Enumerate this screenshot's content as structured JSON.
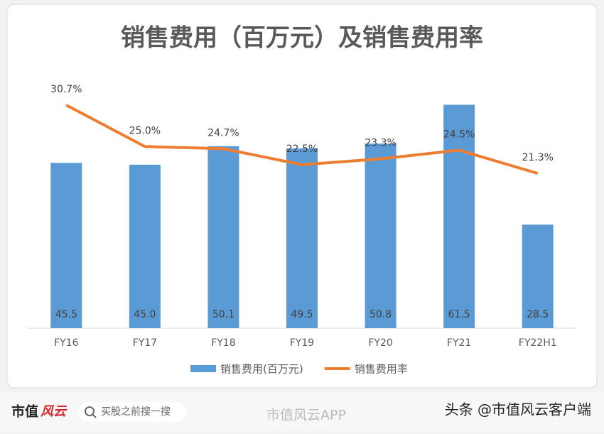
{
  "chart_data": {
    "type": "bar",
    "title": "销售费用（百万元）及销售费用率",
    "categories": [
      "FY16",
      "FY17",
      "FY18",
      "FY19",
      "FY20",
      "FY21",
      "FY22H1"
    ],
    "series": [
      {
        "name": "销售费用(百万元)",
        "type": "bar",
        "color": "#5b9bd5",
        "values": [
          45.5,
          45.0,
          50.1,
          49.5,
          50.8,
          61.5,
          28.5
        ],
        "value_labels": [
          "45.5",
          "45.0",
          "50.1",
          "49.5",
          "50.8",
          "61.5",
          "28.5"
        ]
      },
      {
        "name": "销售费用率",
        "type": "line",
        "axis": "y2",
        "color": "#ed7d31",
        "values": [
          30.7,
          25.0,
          24.7,
          22.5,
          23.3,
          24.5,
          21.3
        ],
        "value_labels": [
          "30.7%",
          "25.0%",
          "24.7%",
          "22.5%",
          "23.3%",
          "24.5%",
          "21.3%"
        ]
      }
    ],
    "ylim": [
      0,
      70
    ],
    "y2lim": [
      0,
      35
    ],
    "legend": "bottom"
  },
  "footer": {
    "logo": [
      "市值",
      "风云"
    ],
    "search": "买股之前搜一搜",
    "watermark": "市值风云APP",
    "source": "头条 @市值风云客户端"
  }
}
